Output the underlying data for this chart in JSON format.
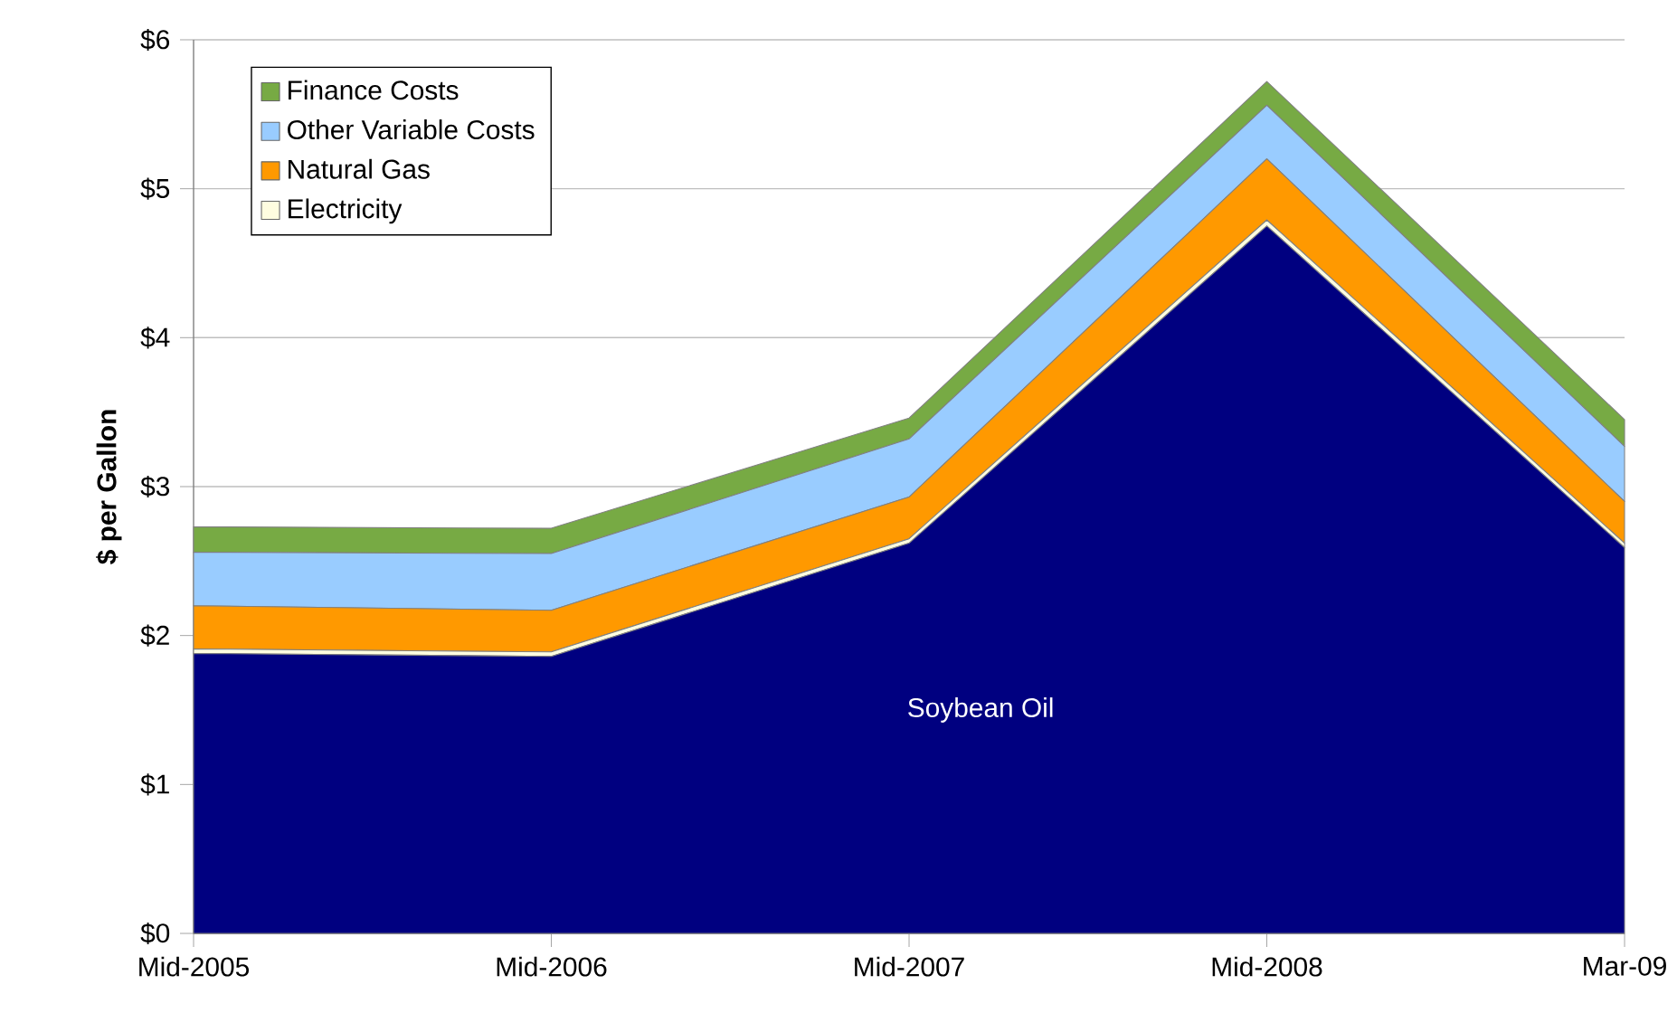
{
  "chart_data": {
    "type": "area",
    "stacked": true,
    "ylabel": "$ per Gallon",
    "categories": [
      "Mid-2005",
      "Mid-2006",
      "Mid-2007",
      "Mid-2008",
      "Mar-09"
    ],
    "series": [
      {
        "name": "Soybean Oil",
        "color": "#000080",
        "values": [
          1.88,
          1.86,
          2.62,
          4.75,
          2.59
        ]
      },
      {
        "name": "Electricity",
        "color": "#fffde0",
        "values": [
          0.03,
          0.03,
          0.03,
          0.04,
          0.03
        ]
      },
      {
        "name": "Natural Gas",
        "color": "#ff9900",
        "values": [
          0.29,
          0.28,
          0.28,
          0.41,
          0.28
        ]
      },
      {
        "name": "Other Variable Costs",
        "color": "#99ccff",
        "values": [
          0.36,
          0.38,
          0.39,
          0.36,
          0.37
        ]
      },
      {
        "name": "Finance Costs",
        "color": "#77aa44",
        "values": [
          0.17,
          0.17,
          0.14,
          0.16,
          0.18
        ]
      }
    ],
    "ylim": [
      0,
      6
    ],
    "yticks": [
      {
        "value": 0,
        "label": "$0"
      },
      {
        "value": 1,
        "label": "$1"
      },
      {
        "value": 2,
        "label": "$2"
      },
      {
        "value": 3,
        "label": "$3"
      },
      {
        "value": 4,
        "label": "$4"
      },
      {
        "value": 5,
        "label": "$5"
      },
      {
        "value": 6,
        "label": "$6"
      }
    ],
    "grid": "y",
    "legend": "top left"
  }
}
